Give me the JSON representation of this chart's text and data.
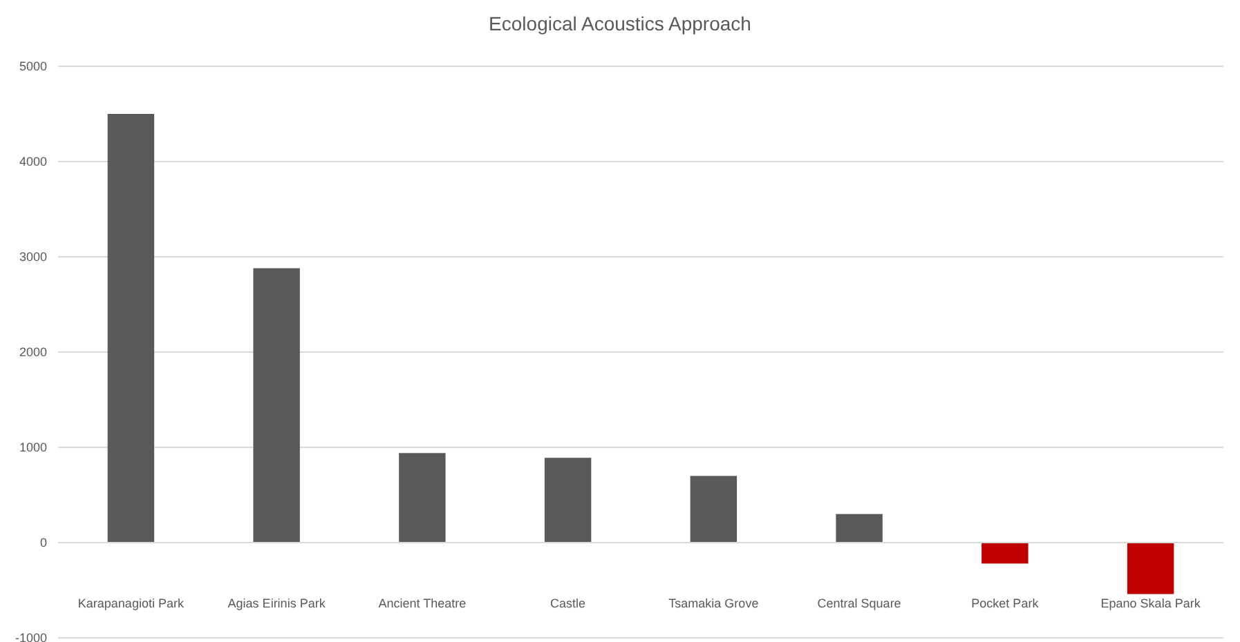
{
  "chart_data": {
    "type": "bar",
    "title": "Ecological Acoustics Approach",
    "categories": [
      "Karapanagioti Park",
      "Agias Eirinis Park",
      "Ancient Theatre",
      "Castle",
      "Tsamakia Grove",
      "Central Square",
      "Pocket Park",
      "Epano Skala Park"
    ],
    "values": [
      4500,
      2880,
      940,
      890,
      700,
      300,
      -220,
      -540
    ],
    "colors": [
      "#595959",
      "#595959",
      "#595959",
      "#595959",
      "#595959",
      "#595959",
      "#c00000",
      "#c00000"
    ],
    "ylim": [
      -1000,
      5000
    ],
    "yticks": [
      -1000,
      0,
      1000,
      2000,
      3000,
      4000,
      5000
    ],
    "grid": "y"
  }
}
